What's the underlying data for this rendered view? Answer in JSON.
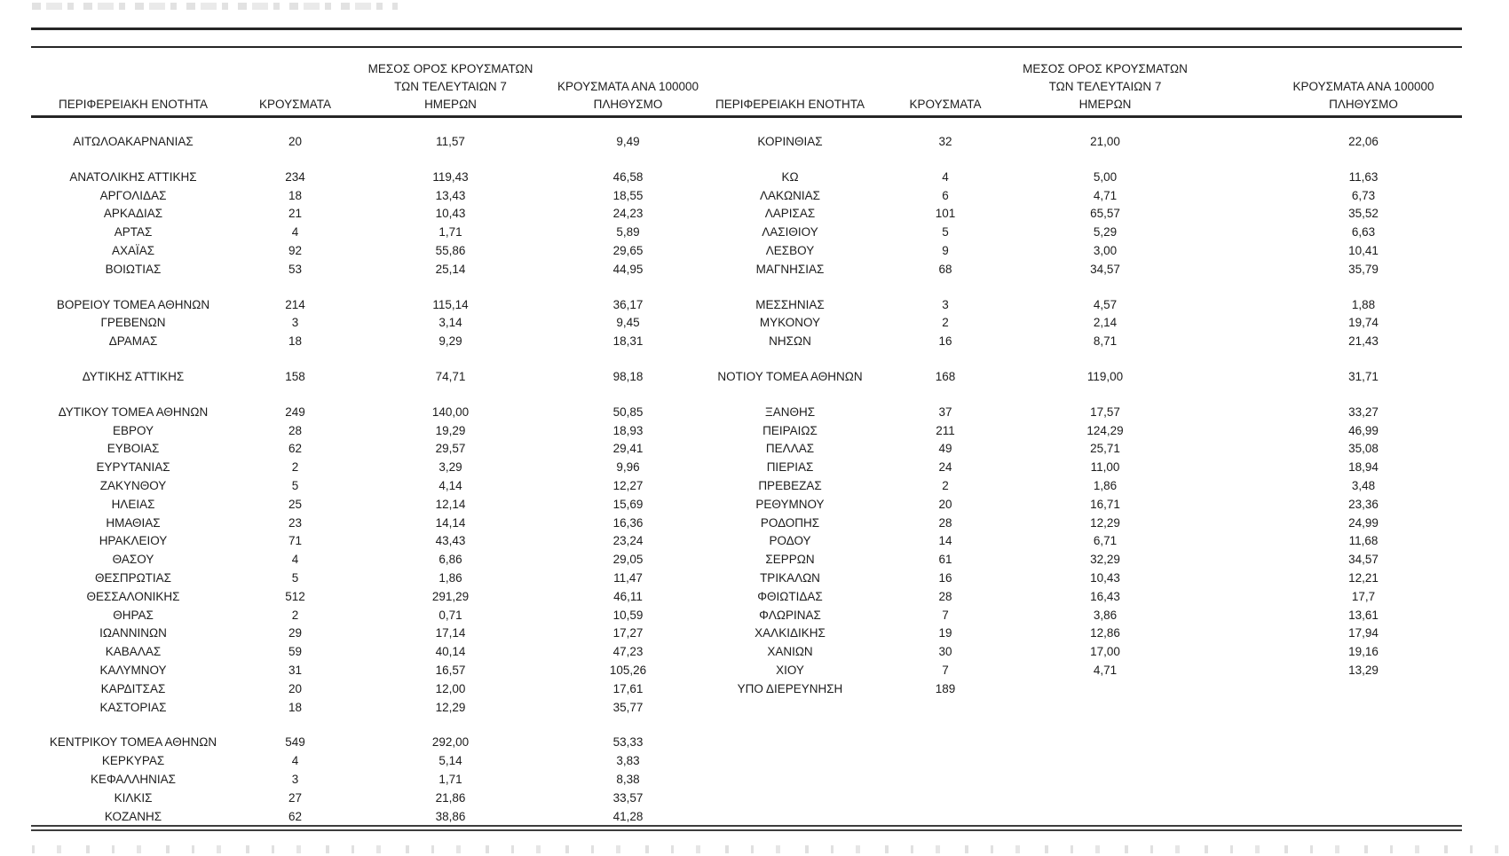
{
  "table": {
    "headers": {
      "region": "ΠΕΡΙΦΕΡΕΙΑΚΗ ΕΝΟΤΗΤΑ",
      "cases": "ΚΡΟΥΣΜΑΤΑ",
      "avg7_line1": "ΜΕΣΟΣ ΟΡΟΣ ΚΡΟΥΣΜΑΤΩΝ",
      "avg7_line2": "ΤΩΝ ΤΕΛΕΥΤΑΙΩΝ 7",
      "avg7_line3": "ΗΜΕΡΩΝ",
      "per100k_line1": "ΚΡΟΥΣΜΑΤΑ ΑΝΑ 100000",
      "per100k_line2": "ΠΛΗΘΥΣΜΟ"
    },
    "rows": [
      {
        "l": [
          "ΑΙΤΩΛΟΑΚΑΡΝΑΝΙΑΣ",
          "20",
          "11,57",
          "9,49"
        ],
        "r": [
          "ΚΟΡΙΝΘΙΑΣ",
          "32",
          "21,00",
          "22,06"
        ]
      },
      {
        "gap": true
      },
      {
        "l": [
          "ΑΝΑΤΟΛΙΚΗΣ ΑΤΤΙΚΗΣ",
          "234",
          "119,43",
          "46,58"
        ],
        "r": [
          "ΚΩ",
          "4",
          "5,00",
          "11,63"
        ]
      },
      {
        "l": [
          "ΑΡΓΟΛΙΔΑΣ",
          "18",
          "13,43",
          "18,55"
        ],
        "r": [
          "ΛΑΚΩΝΙΑΣ",
          "6",
          "4,71",
          "6,73"
        ]
      },
      {
        "l": [
          "ΑΡΚΑΔΙΑΣ",
          "21",
          "10,43",
          "24,23"
        ],
        "r": [
          "ΛΑΡΙΣΑΣ",
          "101",
          "65,57",
          "35,52"
        ]
      },
      {
        "l": [
          "ΑΡΤΑΣ",
          "4",
          "1,71",
          "5,89"
        ],
        "r": [
          "ΛΑΣΙΘΙΟΥ",
          "5",
          "5,29",
          "6,63"
        ]
      },
      {
        "l": [
          "ΑΧΑΪΑΣ",
          "92",
          "55,86",
          "29,65"
        ],
        "r": [
          "ΛΕΣΒΟΥ",
          "9",
          "3,00",
          "10,41"
        ]
      },
      {
        "l": [
          "ΒΟΙΩΤΙΑΣ",
          "53",
          "25,14",
          "44,95"
        ],
        "r": [
          "ΜΑΓΝΗΣΙΑΣ",
          "68",
          "34,57",
          "35,79"
        ]
      },
      {
        "gap": true
      },
      {
        "l": [
          "ΒΟΡΕΙΟΥ ΤΟΜΕΑ ΑΘΗΝΩΝ",
          "214",
          "115,14",
          "36,17"
        ],
        "r": [
          "ΜΕΣΣΗΝΙΑΣ",
          "3",
          "4,57",
          "1,88"
        ]
      },
      {
        "l": [
          "ΓΡΕΒΕΝΩΝ",
          "3",
          "3,14",
          "9,45"
        ],
        "r": [
          "ΜΥΚΟΝΟΥ",
          "2",
          "2,14",
          "19,74"
        ]
      },
      {
        "l": [
          "ΔΡΑΜΑΣ",
          "18",
          "9,29",
          "18,31"
        ],
        "r": [
          "ΝΗΣΩΝ",
          "16",
          "8,71",
          "21,43"
        ]
      },
      {
        "gap": true
      },
      {
        "l": [
          "ΔΥΤΙΚΗΣ ΑΤΤΙΚΗΣ",
          "158",
          "74,71",
          "98,18"
        ],
        "r": [
          "ΝΟΤΙΟΥ ΤΟΜΕΑ ΑΘΗΝΩΝ",
          "168",
          "119,00",
          "31,71"
        ]
      },
      {
        "gap": true
      },
      {
        "l": [
          "ΔΥΤΙΚΟΥ ΤΟΜΕΑ ΑΘΗΝΩΝ",
          "249",
          "140,00",
          "50,85"
        ],
        "r": [
          "ΞΑΝΘΗΣ",
          "37",
          "17,57",
          "33,27"
        ]
      },
      {
        "l": [
          "ΕΒΡΟΥ",
          "28",
          "19,29",
          "18,93"
        ],
        "r": [
          "ΠΕΙΡΑΙΩΣ",
          "211",
          "124,29",
          "46,99"
        ]
      },
      {
        "l": [
          "ΕΥΒΟΙΑΣ",
          "62",
          "29,57",
          "29,41"
        ],
        "r": [
          "ΠΕΛΛΑΣ",
          "49",
          "25,71",
          "35,08"
        ]
      },
      {
        "l": [
          "ΕΥΡΥΤΑΝΙΑΣ",
          "2",
          "3,29",
          "9,96"
        ],
        "r": [
          "ΠΙΕΡΙΑΣ",
          "24",
          "11,00",
          "18,94"
        ]
      },
      {
        "l": [
          "ΖΑΚΥΝΘΟΥ",
          "5",
          "4,14",
          "12,27"
        ],
        "r": [
          "ΠΡΕΒΕΖΑΣ",
          "2",
          "1,86",
          "3,48"
        ]
      },
      {
        "l": [
          "ΗΛΕΙΑΣ",
          "25",
          "12,14",
          "15,69"
        ],
        "r": [
          "ΡΕΘΥΜΝΟΥ",
          "20",
          "16,71",
          "23,36"
        ]
      },
      {
        "l": [
          "ΗΜΑΘΙΑΣ",
          "23",
          "14,14",
          "16,36"
        ],
        "r": [
          "ΡΟΔΟΠΗΣ",
          "28",
          "12,29",
          "24,99"
        ]
      },
      {
        "l": [
          "ΗΡΑΚΛΕΙΟΥ",
          "71",
          "43,43",
          "23,24"
        ],
        "r": [
          "ΡΟΔΟΥ",
          "14",
          "6,71",
          "11,68"
        ]
      },
      {
        "l": [
          "ΘΑΣΟΥ",
          "4",
          "6,86",
          "29,05"
        ],
        "r": [
          "ΣΕΡΡΩΝ",
          "61",
          "32,29",
          "34,57"
        ]
      },
      {
        "l": [
          "ΘΕΣΠΡΩΤΙΑΣ",
          "5",
          "1,86",
          "11,47"
        ],
        "r": [
          "ΤΡΙΚΑΛΩΝ",
          "16",
          "10,43",
          "12,21"
        ]
      },
      {
        "l": [
          "ΘΕΣΣΑΛΟΝΙΚΗΣ",
          "512",
          "291,29",
          "46,11"
        ],
        "r": [
          "ΦΘΙΩΤΙΔΑΣ",
          "28",
          "16,43",
          "17,7"
        ]
      },
      {
        "l": [
          "ΘΗΡΑΣ",
          "2",
          "0,71",
          "10,59"
        ],
        "r": [
          "ΦΛΩΡΙΝΑΣ",
          "7",
          "3,86",
          "13,61"
        ]
      },
      {
        "l": [
          "ΙΩΑΝΝΙΝΩΝ",
          "29",
          "17,14",
          "17,27"
        ],
        "r": [
          "ΧΑΛΚΙΔΙΚΗΣ",
          "19",
          "12,86",
          "17,94"
        ]
      },
      {
        "l": [
          "ΚΑΒΑΛΑΣ",
          "59",
          "40,14",
          "47,23"
        ],
        "r": [
          "ΧΑΝΙΩΝ",
          "30",
          "17,00",
          "19,16"
        ]
      },
      {
        "l": [
          "ΚΑΛΥΜΝΟΥ",
          "31",
          "16,57",
          "105,26"
        ],
        "r": [
          "ΧΙΟΥ",
          "7",
          "4,71",
          "13,29"
        ]
      },
      {
        "l": [
          "ΚΑΡΔΙΤΣΑΣ",
          "20",
          "12,00",
          "17,61"
        ],
        "r": [
          "ΥΠΟ ΔΙΕΡΕΥΝΗΣΗ",
          "189",
          "",
          ""
        ]
      },
      {
        "l": [
          "ΚΑΣΤΟΡΙΑΣ",
          "18",
          "12,29",
          "35,77"
        ],
        "r": null
      },
      {
        "gap": true
      },
      {
        "l": [
          "ΚΕΝΤΡΙΚΟΥ ΤΟΜΕΑ ΑΘΗΝΩΝ",
          "549",
          "292,00",
          "53,33"
        ],
        "r": null
      },
      {
        "l": [
          "ΚΕΡΚΥΡΑΣ",
          "4",
          "5,14",
          "3,83"
        ],
        "r": null
      },
      {
        "l": [
          "ΚΕΦΑΛΛΗΝΙΑΣ",
          "3",
          "1,71",
          "8,38"
        ],
        "r": null
      },
      {
        "l": [
          "ΚΙΛΚΙΣ",
          "27",
          "21,86",
          "33,57"
        ],
        "r": null
      },
      {
        "l": [
          "ΚΟΖΑΝΗΣ",
          "62",
          "38,86",
          "41,28"
        ],
        "r": null
      }
    ]
  }
}
